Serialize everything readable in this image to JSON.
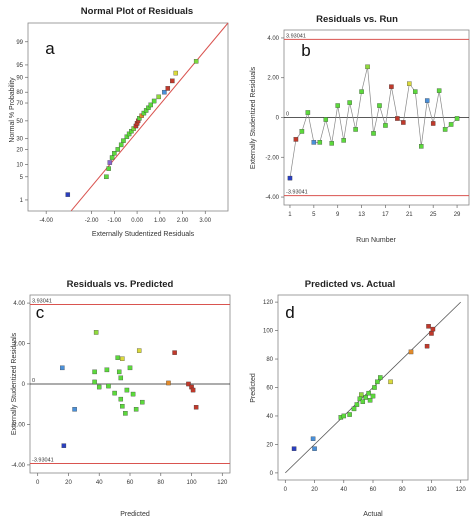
{
  "chart_data": [
    {
      "id": "a",
      "type": "scatter",
      "title": "Normal Plot of Residuals",
      "xlabel": "Externally Studentized Residuals",
      "ylabel": "Normal % Probability",
      "panel_letter": "a",
      "xlim": [
        -4.8,
        4.0
      ],
      "x_ticks": [
        "-4.00",
        "-2.00",
        "-1.00",
        "0.00",
        "1.00",
        "2.00",
        "3.00"
      ],
      "x_tick_values": [
        -4,
        -2,
        -1,
        0,
        1,
        2,
        3
      ],
      "y_tick_labels": [
        "1",
        "5",
        "10",
        "20",
        "30",
        "50",
        "70",
        "80",
        "90",
        "95",
        "99"
      ],
      "y_tick_values": [
        1,
        5,
        10,
        20,
        30,
        50,
        70,
        80,
        90,
        95,
        99
      ],
      "y_scale": "normal-probability",
      "reference_line": {
        "color": "#d9534f"
      },
      "points": [
        {
          "x": -3.05,
          "y": 1.5,
          "color": "#2b3fbf"
        },
        {
          "x": -1.35,
          "y": 5,
          "color": "#5cd93c"
        },
        {
          "x": -1.25,
          "y": 8,
          "color": "#5cd93c"
        },
        {
          "x": -1.2,
          "y": 11,
          "color": "#8866cc"
        },
        {
          "x": -1.1,
          "y": 14,
          "color": "#5cd93c"
        },
        {
          "x": -1.0,
          "y": 17,
          "color": "#5cd93c"
        },
        {
          "x": -0.85,
          "y": 20,
          "color": "#5cd93c"
        },
        {
          "x": -0.7,
          "y": 24,
          "color": "#5cd93c"
        },
        {
          "x": -0.6,
          "y": 28,
          "color": "#5cd93c"
        },
        {
          "x": -0.45,
          "y": 32,
          "color": "#5cd93c"
        },
        {
          "x": -0.35,
          "y": 35,
          "color": "#5cd93c"
        },
        {
          "x": -0.25,
          "y": 38,
          "color": "#5cd93c"
        },
        {
          "x": -0.15,
          "y": 41,
          "color": "#7dd93c"
        },
        {
          "x": -0.05,
          "y": 44,
          "color": "#c0392b"
        },
        {
          "x": 0.0,
          "y": 47,
          "color": "#c0392b"
        },
        {
          "x": 0.05,
          "y": 50,
          "color": "#c0392b"
        },
        {
          "x": 0.1,
          "y": 53,
          "color": "#5cd93c"
        },
        {
          "x": 0.2,
          "y": 56,
          "color": "#e08a2c"
        },
        {
          "x": 0.3,
          "y": 59,
          "color": "#5cd93c"
        },
        {
          "x": 0.4,
          "y": 62,
          "color": "#5cd93c"
        },
        {
          "x": 0.5,
          "y": 65,
          "color": "#5cd93c"
        },
        {
          "x": 0.6,
          "y": 68,
          "color": "#5cd93c"
        },
        {
          "x": 0.75,
          "y": 72,
          "color": "#5cd93c"
        },
        {
          "x": 0.95,
          "y": 76,
          "color": "#8fd93c"
        },
        {
          "x": 1.2,
          "y": 80,
          "color": "#4a90d9"
        },
        {
          "x": 1.35,
          "y": 83,
          "color": "#c0392b"
        },
        {
          "x": 1.55,
          "y": 88,
          "color": "#c0392b"
        },
        {
          "x": 1.7,
          "y": 92,
          "color": "#d9d93c"
        },
        {
          "x": 2.6,
          "y": 96,
          "color": "#7dd93c"
        }
      ]
    },
    {
      "id": "b",
      "type": "line",
      "title": "Residuals vs. Run",
      "xlabel": "Run Number",
      "ylabel": "Externally Studentized Residuals",
      "panel_letter": "b",
      "xlim": [
        0,
        31
      ],
      "ylim": [
        -4.4,
        4.4
      ],
      "x_ticks": [
        "1",
        "5",
        "9",
        "13",
        "17",
        "21",
        "25",
        "29"
      ],
      "x_tick_values": [
        1,
        5,
        9,
        13,
        17,
        21,
        25,
        29
      ],
      "y_ticks": [
        "-4.00",
        "-2.00",
        "0",
        "2.00",
        "4.00"
      ],
      "y_tick_values": [
        -4,
        -2,
        0,
        2,
        4
      ],
      "upper_limit": 3.93041,
      "lower_limit": -3.93041,
      "upper_label": "3.93041",
      "lower_label": "-3.93041",
      "zero_label": "0",
      "limit_color": "#d9534f",
      "points": [
        {
          "x": 1,
          "y": -3.05,
          "color": "#2b3fbf"
        },
        {
          "x": 2,
          "y": -1.1,
          "color": "#c0392b"
        },
        {
          "x": 3,
          "y": -0.7,
          "color": "#5cd93c"
        },
        {
          "x": 4,
          "y": 0.25,
          "color": "#5cd93c"
        },
        {
          "x": 5,
          "y": -1.25,
          "color": "#4a90d9"
        },
        {
          "x": 6,
          "y": -1.25,
          "color": "#5cd93c"
        },
        {
          "x": 7,
          "y": -0.1,
          "color": "#5cd93c"
        },
        {
          "x": 8,
          "y": -1.3,
          "color": "#5cd93c"
        },
        {
          "x": 9,
          "y": 0.6,
          "color": "#5cd93c"
        },
        {
          "x": 10,
          "y": -1.15,
          "color": "#5cd93c"
        },
        {
          "x": 11,
          "y": 0.75,
          "color": "#5cd93c"
        },
        {
          "x": 12,
          "y": -0.6,
          "color": "#5cd93c"
        },
        {
          "x": 13,
          "y": 1.3,
          "color": "#5cd93c"
        },
        {
          "x": 14,
          "y": 2.55,
          "color": "#8fd93c"
        },
        {
          "x": 15,
          "y": -0.8,
          "color": "#5cd93c"
        },
        {
          "x": 16,
          "y": 0.6,
          "color": "#5cd93c"
        },
        {
          "x": 17,
          "y": -0.4,
          "color": "#5cd93c"
        },
        {
          "x": 18,
          "y": 1.55,
          "color": "#c0392b"
        },
        {
          "x": 19,
          "y": -0.05,
          "color": "#c0392b"
        },
        {
          "x": 20,
          "y": -0.25,
          "color": "#c0392b"
        },
        {
          "x": 21,
          "y": 1.7,
          "color": "#d9d93c"
        },
        {
          "x": 22,
          "y": 1.3,
          "color": "#5cd93c"
        },
        {
          "x": 23,
          "y": -1.45,
          "color": "#5cd93c"
        },
        {
          "x": 24,
          "y": 0.85,
          "color": "#4a90d9"
        },
        {
          "x": 25,
          "y": -0.3,
          "color": "#c0392b"
        },
        {
          "x": 26,
          "y": 1.35,
          "color": "#5cd93c"
        },
        {
          "x": 27,
          "y": -0.6,
          "color": "#5cd93c"
        },
        {
          "x": 28,
          "y": -0.35,
          "color": "#5cd93c"
        },
        {
          "x": 29,
          "y": -0.05,
          "color": "#5cd93c"
        }
      ]
    },
    {
      "id": "c",
      "type": "scatter",
      "title": "Residuals vs. Predicted",
      "xlabel": "Predicted",
      "ylabel": "Externally Studentized Residuals",
      "panel_letter": "c",
      "xlim": [
        -5,
        125
      ],
      "ylim": [
        -4.4,
        4.4
      ],
      "x_ticks": [
        "0",
        "20",
        "40",
        "60",
        "80",
        "100",
        "120"
      ],
      "x_tick_values": [
        0,
        20,
        40,
        60,
        80,
        100,
        120
      ],
      "y_ticks": [
        "-4.00",
        "-2.00",
        "0",
        "2.00",
        "4.00"
      ],
      "y_tick_values": [
        -4,
        -2,
        0,
        2,
        4
      ],
      "upper_limit": 3.93041,
      "lower_limit": -3.93041,
      "upper_label": "3.93041",
      "lower_label": "-3.93041",
      "zero_label": "0",
      "limit_color": "#d9534f",
      "points": [
        {
          "x": 17,
          "y": -3.05,
          "color": "#2b3fbf"
        },
        {
          "x": 16,
          "y": 0.8,
          "color": "#4a90d9"
        },
        {
          "x": 24,
          "y": -1.25,
          "color": "#4a90d9"
        },
        {
          "x": 38,
          "y": 2.55,
          "color": "#8fd93c"
        },
        {
          "x": 37,
          "y": 0.6,
          "color": "#5cd93c"
        },
        {
          "x": 37,
          "y": 0.1,
          "color": "#5cd93c"
        },
        {
          "x": 40,
          "y": -0.15,
          "color": "#5cd93c"
        },
        {
          "x": 45,
          "y": 0.7,
          "color": "#5cd93c"
        },
        {
          "x": 46,
          "y": -0.1,
          "color": "#5cd93c"
        },
        {
          "x": 50,
          "y": -0.45,
          "color": "#5cd93c"
        },
        {
          "x": 52,
          "y": 1.3,
          "color": "#5cd93c"
        },
        {
          "x": 53,
          "y": 0.6,
          "color": "#5cd93c"
        },
        {
          "x": 54,
          "y": 0.3,
          "color": "#5cd93c"
        },
        {
          "x": 55,
          "y": 1.25,
          "color": "#d9d93c"
        },
        {
          "x": 54,
          "y": -0.75,
          "color": "#5cd93c"
        },
        {
          "x": 55,
          "y": -1.1,
          "color": "#5cd93c"
        },
        {
          "x": 57,
          "y": -1.45,
          "color": "#5cd93c"
        },
        {
          "x": 58,
          "y": -0.3,
          "color": "#5cd93c"
        },
        {
          "x": 60,
          "y": 0.8,
          "color": "#5cd93c"
        },
        {
          "x": 62,
          "y": -0.5,
          "color": "#5cd93c"
        },
        {
          "x": 64,
          "y": -1.25,
          "color": "#5cd93c"
        },
        {
          "x": 66,
          "y": 1.65,
          "color": "#d9d93c"
        },
        {
          "x": 68,
          "y": -0.9,
          "color": "#5cd93c"
        },
        {
          "x": 85,
          "y": 0.05,
          "color": "#e08a2c"
        },
        {
          "x": 89,
          "y": 1.55,
          "color": "#c0392b"
        },
        {
          "x": 98,
          "y": 0.0,
          "color": "#c0392b"
        },
        {
          "x": 100,
          "y": -0.15,
          "color": "#c0392b"
        },
        {
          "x": 101,
          "y": -0.3,
          "color": "#c0392b"
        },
        {
          "x": 103,
          "y": -1.15,
          "color": "#c0392b"
        }
      ]
    },
    {
      "id": "d",
      "type": "scatter",
      "title": "Predicted vs. Actual",
      "xlabel": "Actual",
      "ylabel": "Predicted",
      "panel_letter": "d",
      "xlim": [
        -5,
        125
      ],
      "ylim": [
        -5,
        125
      ],
      "x_ticks": [
        "0",
        "20",
        "40",
        "60",
        "80",
        "100",
        "120"
      ],
      "x_tick_values": [
        0,
        20,
        40,
        60,
        80,
        100,
        120
      ],
      "y_ticks": [
        "0",
        "20",
        "40",
        "60",
        "80",
        "100",
        "120"
      ],
      "y_tick_values": [
        0,
        20,
        40,
        60,
        80,
        100,
        120
      ],
      "reference_line": {
        "color": "#555555"
      },
      "points": [
        {
          "x": 6,
          "y": 17,
          "color": "#2b3fbf"
        },
        {
          "x": 19,
          "y": 24,
          "color": "#4a90d9"
        },
        {
          "x": 20,
          "y": 17,
          "color": "#4a90d9"
        },
        {
          "x": 38,
          "y": 39,
          "color": "#5cd93c"
        },
        {
          "x": 40,
          "y": 40,
          "color": "#5cd93c"
        },
        {
          "x": 44,
          "y": 41,
          "color": "#5cd93c"
        },
        {
          "x": 47,
          "y": 45,
          "color": "#5cd93c"
        },
        {
          "x": 49,
          "y": 48,
          "color": "#5cd93c"
        },
        {
          "x": 51,
          "y": 52,
          "color": "#5cd93c"
        },
        {
          "x": 53,
          "y": 50,
          "color": "#5cd93c"
        },
        {
          "x": 55,
          "y": 53,
          "color": "#5cd93c"
        },
        {
          "x": 52,
          "y": 55,
          "color": "#8fd93c"
        },
        {
          "x": 57,
          "y": 56,
          "color": "#5cd93c"
        },
        {
          "x": 58,
          "y": 51,
          "color": "#5cd93c"
        },
        {
          "x": 60,
          "y": 54,
          "color": "#5cd93c"
        },
        {
          "x": 61,
          "y": 60,
          "color": "#5cd93c"
        },
        {
          "x": 63,
          "y": 64,
          "color": "#5cd93c"
        },
        {
          "x": 65,
          "y": 67,
          "color": "#5cd93c"
        },
        {
          "x": 72,
          "y": 64,
          "color": "#d9d93c"
        },
        {
          "x": 86,
          "y": 85,
          "color": "#e08a2c"
        },
        {
          "x": 97,
          "y": 89,
          "color": "#c0392b"
        },
        {
          "x": 98,
          "y": 103,
          "color": "#c0392b"
        },
        {
          "x": 100,
          "y": 98,
          "color": "#c0392b"
        },
        {
          "x": 101,
          "y": 101,
          "color": "#c0392b"
        }
      ]
    }
  ]
}
